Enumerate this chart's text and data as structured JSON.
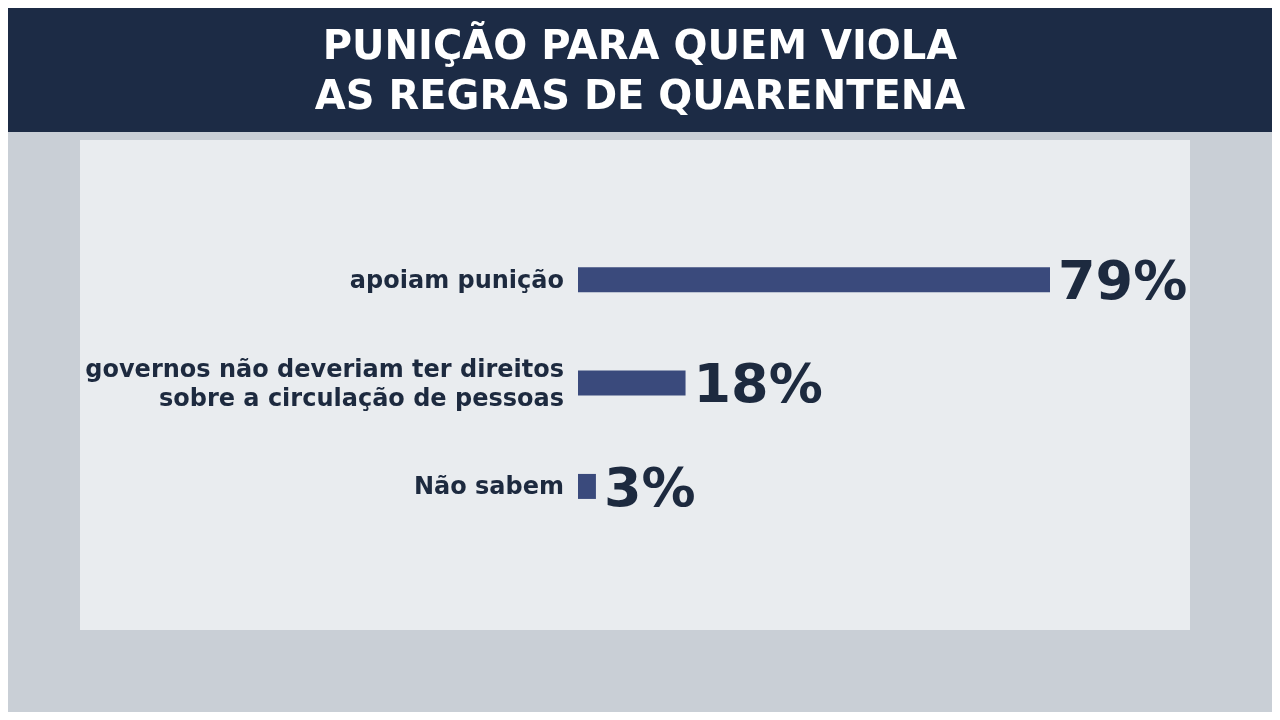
{
  "chart_data": {
    "type": "bar",
    "orientation": "horizontal",
    "title": "PUNIÇÃO PARA QUEM VIOLA\nAS REGRAS DE QUARENTENA",
    "categories": [
      "apoiam punição",
      "governos não deveriam ter direitos sobre a circulação de pessoas",
      "Não sabem"
    ],
    "values": [
      79,
      18,
      3
    ],
    "value_labels": [
      "79%",
      "18%",
      "3%"
    ],
    "color": "#3a4a7c",
    "grid": false,
    "legend": false
  }
}
